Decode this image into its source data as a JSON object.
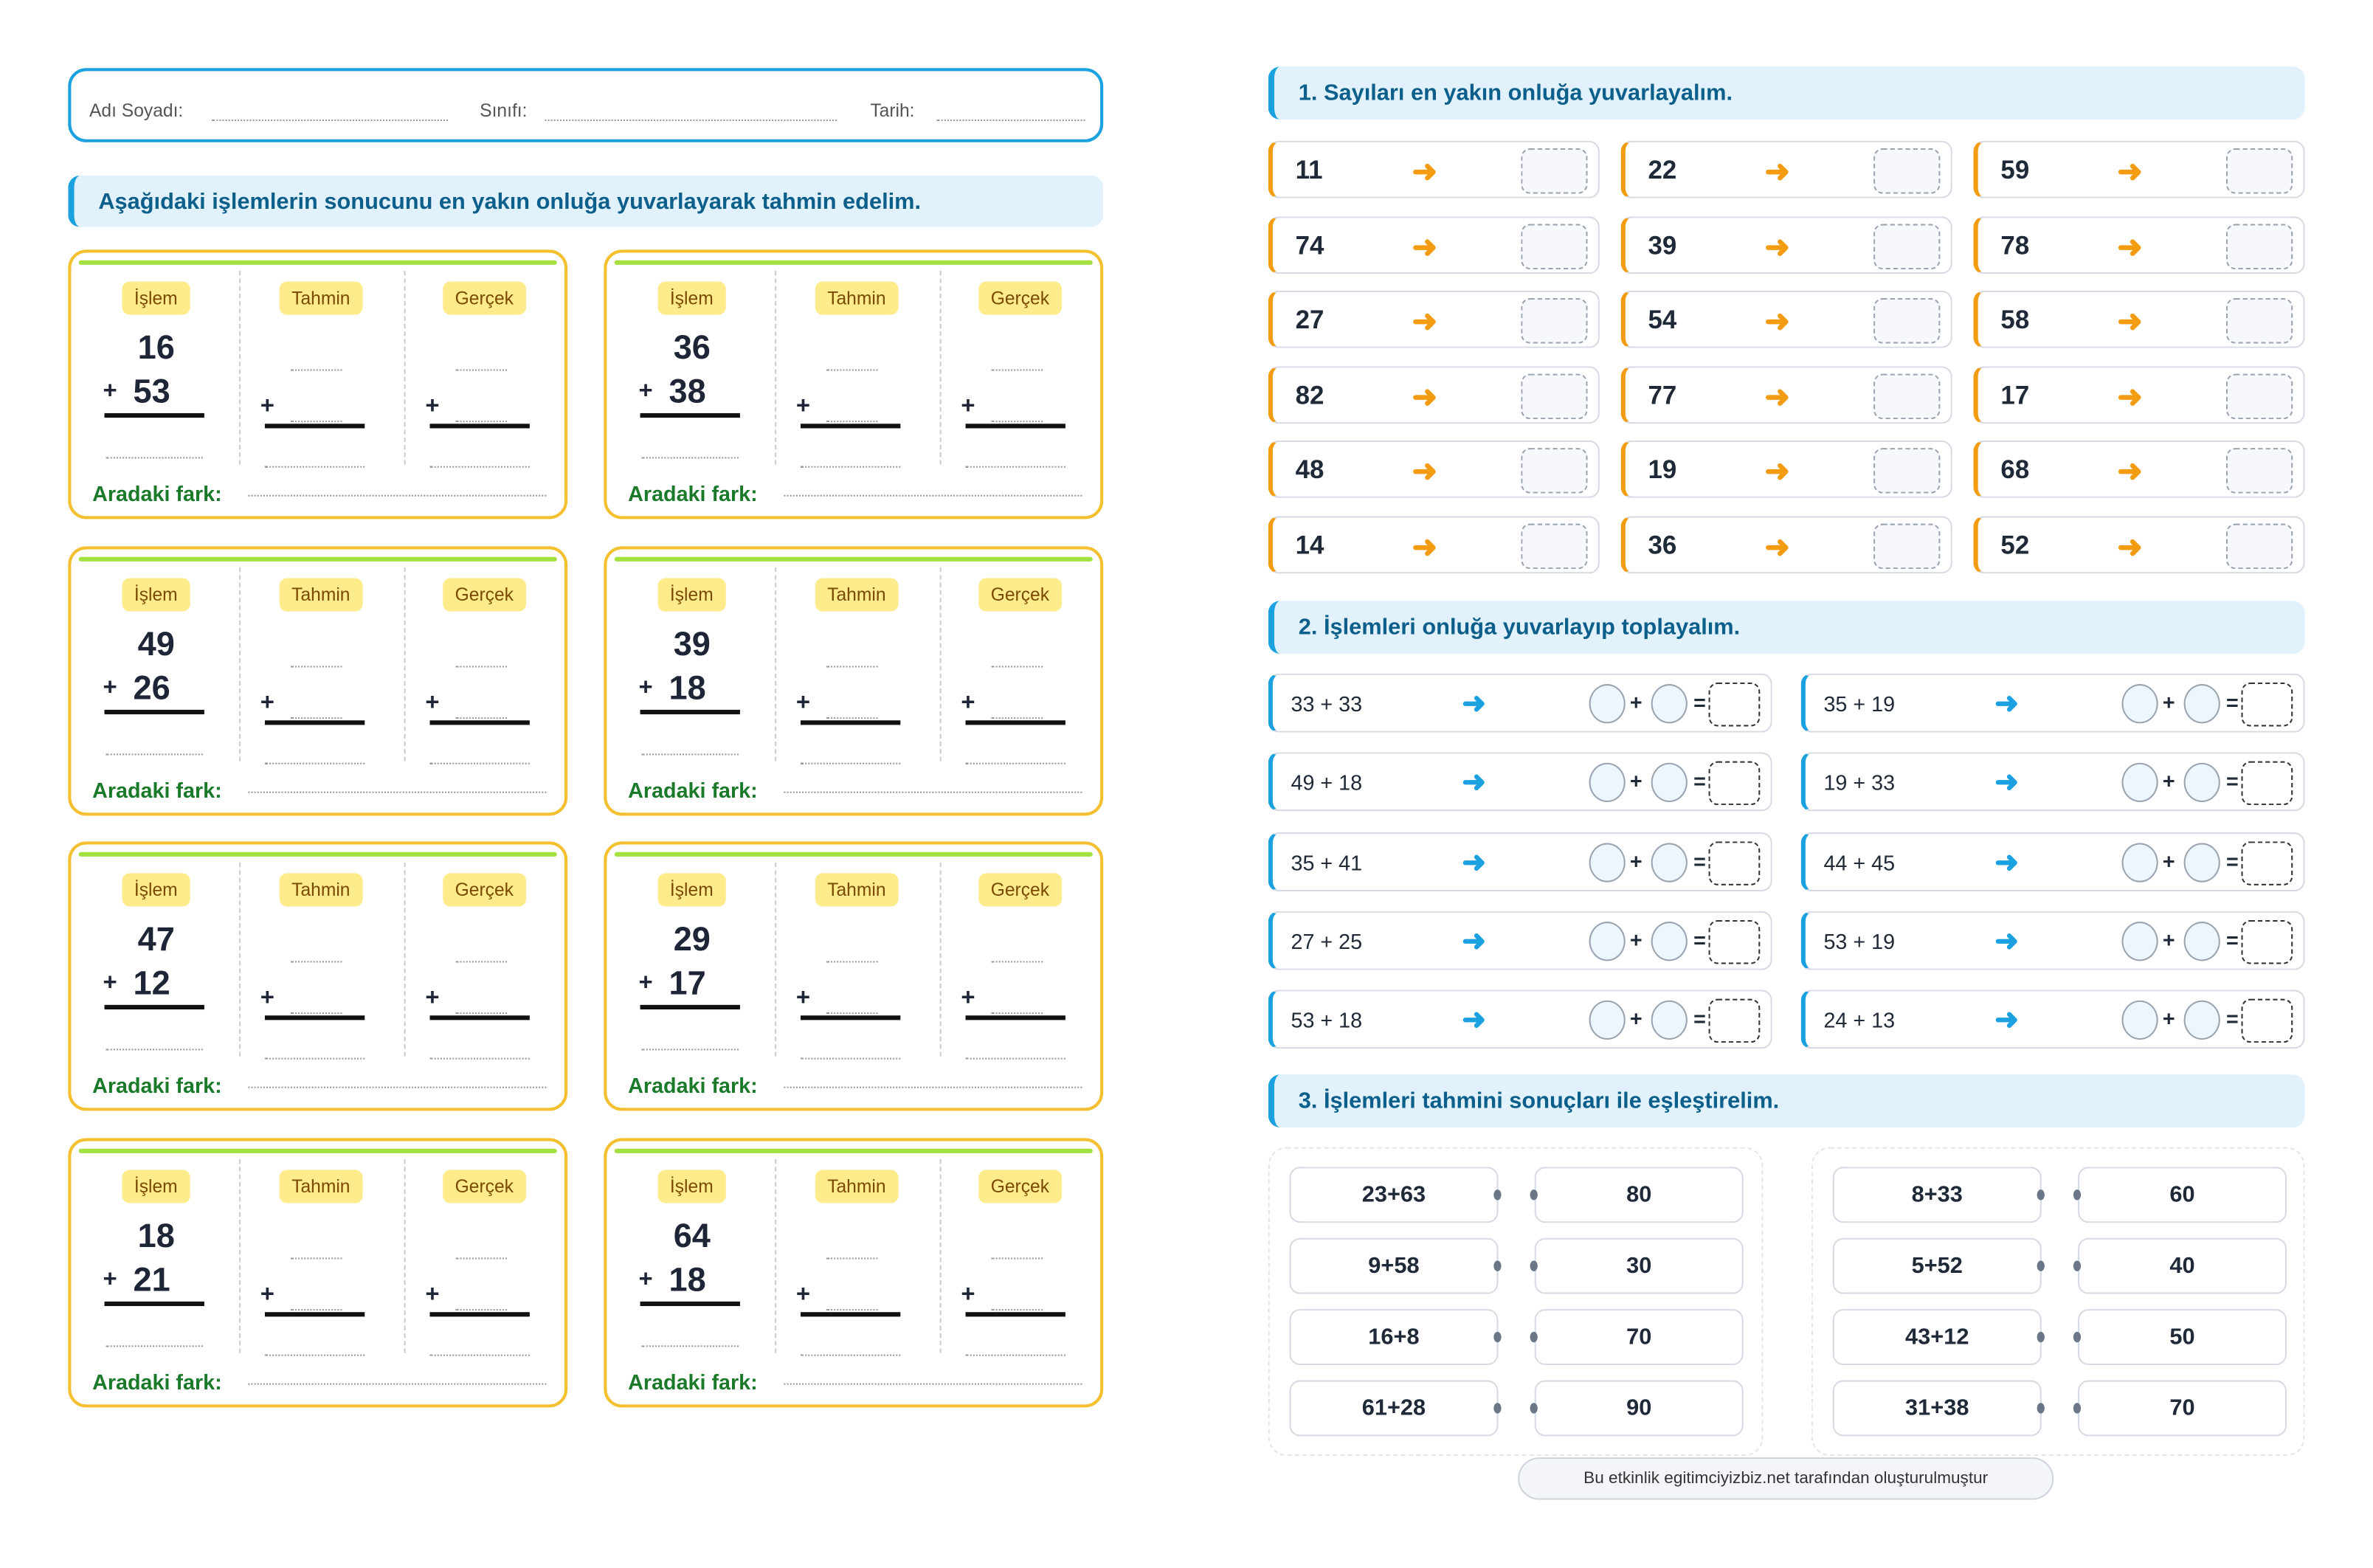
{
  "header": {
    "name_label": "Adı Soyadı:",
    "class_label": "Sınıfı:",
    "date_label": "Tarih:"
  },
  "left": {
    "instruction": "Aşağıdaki işlemlerin sonucunu en yakın onluğa yuvarlayarak tahmin edelim.",
    "col_labels": [
      "İşlem",
      "Tahmin",
      "Gerçek"
    ],
    "difference_label": "Aradaki fark:",
    "operator": "+",
    "problems": [
      {
        "a": "16",
        "b": "53"
      },
      {
        "a": "36",
        "b": "38"
      },
      {
        "a": "49",
        "b": "26"
      },
      {
        "a": "39",
        "b": "18"
      },
      {
        "a": "47",
        "b": "12"
      },
      {
        "a": "29",
        "b": "17"
      },
      {
        "a": "18",
        "b": "21"
      },
      {
        "a": "64",
        "b": "18"
      }
    ]
  },
  "section1": {
    "title": "1. Sayıları en yakın onluğa yuvarlayalım.",
    "arrow": "➜",
    "numbers": [
      "11",
      "22",
      "59",
      "74",
      "39",
      "78",
      "27",
      "54",
      "58",
      "82",
      "77",
      "17",
      "48",
      "19",
      "68",
      "14",
      "36",
      "52"
    ]
  },
  "section2": {
    "title": "2. İşlemleri onluğa yuvarlayıp toplayalım.",
    "arrow": "➜",
    "plus": "+",
    "equals": "=",
    "items": [
      "33 + 33",
      "35 + 19",
      "49 + 18",
      "19 + 33",
      "35 + 41",
      "44 + 45",
      "27 + 25",
      "53 + 19",
      "53 + 18",
      "24 + 13"
    ]
  },
  "section3": {
    "title": "3. İşlemleri tahmini sonuçları ile eşleştirelim.",
    "groups": [
      {
        "left": [
          "23+63",
          "9+58",
          "16+8",
          "61+28"
        ],
        "right": [
          "80",
          "30",
          "70",
          "90"
        ]
      },
      {
        "left": [
          "8+33",
          "5+52",
          "43+12",
          "31+38"
        ],
        "right": [
          "60",
          "40",
          "50",
          "70"
        ]
      }
    ]
  },
  "footer": "Bu etkinlik egitimciyizbiz.net tarafından oluşturulmuştur",
  "colors": {
    "accent_blue": "#1ba0e0",
    "card_border": "#f4c030",
    "green_bar": "#a3e040",
    "orange_arrow": "#f39c12",
    "chip_bg": "#fdeb8c",
    "fark_green": "#1a7a2a"
  }
}
